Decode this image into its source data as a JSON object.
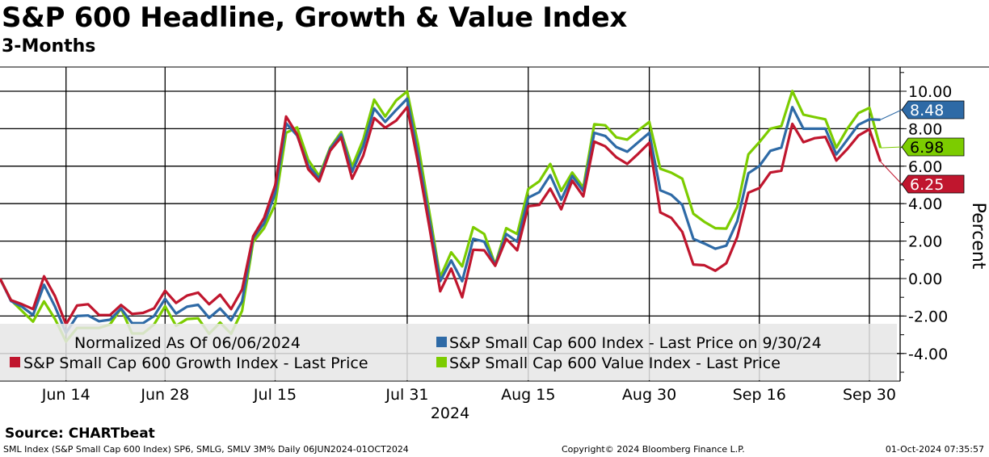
{
  "title": "S&P 600 Headline, Growth & Value Index",
  "subtitle": "3-Months",
  "source": "Source: CHARTbeat",
  "footer": {
    "left": "SML Index (S&P Small Cap 600 Index) SP6, SMLG, SMLV 3M%  Daily 06JUN2024-01OCT2024",
    "center": "Copyright© 2024 Bloomberg Finance L.P.",
    "right": "01-Oct-2024 07:35:57"
  },
  "chart_data": {
    "type": "line",
    "title": "S&P 600 Headline, Growth & Value Index",
    "ylabel": "Percent",
    "xlabel": "2024",
    "ylim": [
      -5.47,
      11.3
    ],
    "yticks": [
      "10.00",
      "8.00",
      "6.00",
      "4.00",
      "2.00",
      "0.00",
      "-2.00",
      "-4.00"
    ],
    "ytick_values": [
      10,
      8,
      6,
      4,
      2,
      0,
      -2,
      -4
    ],
    "xticks": [
      {
        "label": "Jun 14",
        "index": 6
      },
      {
        "label": "Jun 28",
        "index": 15
      },
      {
        "label": "Jul 15",
        "index": 25
      },
      {
        "label": "Jul 31",
        "index": 37
      },
      {
        "label": "Aug 15",
        "index": 48
      },
      {
        "label": "Aug 30",
        "index": 59
      },
      {
        "label": "Sep 16",
        "index": 69
      },
      {
        "label": "Sep 30",
        "index": 79
      }
    ],
    "grid": true,
    "legend": {
      "note": "Normalized As Of 06/06/2024",
      "placement": "bottom-left"
    },
    "series": [
      {
        "name": "S&P Small Cap 600 Index - Last Price on 9/30/24",
        "color": "#2e6aa6",
        "last": "8.48",
        "values": [
          0,
          -1.2,
          -1.5,
          -1.95,
          -0.33,
          -1.5,
          -2.9,
          -2.0,
          -1.97,
          -2.28,
          -2.2,
          -1.6,
          -2.38,
          -2.38,
          -2.0,
          -1.08,
          -1.87,
          -1.5,
          -1.4,
          -2.1,
          -1.6,
          -2.23,
          -1.22,
          2.16,
          2.95,
          4.54,
          8.29,
          7.64,
          6.05,
          5.33,
          6.92,
          7.7,
          5.7,
          7.06,
          9.08,
          8.36,
          9.0,
          9.6,
          6.56,
          3.2,
          -0.14,
          0.97,
          -0.14,
          2.12,
          1.97,
          0.72,
          2.38,
          1.97,
          4.32,
          4.61,
          5.52,
          4.21,
          5.48,
          4.68,
          7.78,
          7.61,
          7.02,
          6.77,
          7.28,
          7.78,
          4.71,
          4.47,
          3.93,
          2.12,
          1.87,
          1.59,
          1.76,
          3.07,
          5.62,
          6.01,
          6.82,
          6.99,
          9.15,
          8.0,
          8.0,
          8.0,
          6.63,
          7.42,
          8.21,
          8.5,
          8.48
        ]
      },
      {
        "name": "S&P Small Cap 600 Growth Index - Last Price",
        "color": "#c0162e",
        "last": "6.25",
        "values": [
          0,
          -1.15,
          -1.37,
          -1.63,
          0.12,
          -0.94,
          -2.45,
          -1.44,
          -1.37,
          -1.95,
          -1.95,
          -1.41,
          -1.89,
          -1.83,
          -1.59,
          -0.65,
          -1.3,
          -0.91,
          -0.75,
          -1.37,
          -0.86,
          -1.63,
          -0.58,
          2.26,
          3.24,
          4.97,
          8.65,
          7.7,
          5.84,
          5.19,
          6.82,
          7.54,
          5.33,
          6.56,
          8.57,
          8.05,
          8.43,
          9.15,
          6.12,
          2.8,
          -0.68,
          0.53,
          -1.0,
          1.54,
          1.51,
          0.68,
          2.12,
          1.51,
          3.86,
          3.93,
          4.8,
          3.7,
          5.23,
          4.39,
          7.31,
          7.06,
          6.48,
          6.12,
          6.67,
          7.25,
          3.53,
          3.24,
          2.49,
          0.75,
          0.71,
          0.42,
          0.82,
          2.23,
          4.58,
          4.83,
          5.66,
          5.76,
          8.26,
          7.28,
          7.49,
          7.56,
          6.3,
          6.92,
          7.64,
          7.97,
          6.25
        ]
      },
      {
        "name": "S&P Small Cap 600 Value Index - Last Price",
        "color": "#7ccc00",
        "last": "6.98",
        "values": [
          0,
          -1.15,
          -1.73,
          -2.3,
          -1.22,
          -2.16,
          -3.36,
          -2.64,
          -2.64,
          -2.64,
          -2.45,
          -1.59,
          -2.93,
          -2.93,
          -2.45,
          -1.48,
          -2.52,
          -2.16,
          -2.12,
          -2.95,
          -2.35,
          -2.95,
          -1.73,
          1.95,
          2.69,
          3.96,
          7.78,
          8.07,
          6.34,
          5.48,
          6.99,
          7.82,
          5.98,
          7.42,
          9.55,
          8.65,
          9.51,
          9.99,
          7.13,
          3.6,
          0.07,
          1.4,
          0.65,
          2.74,
          2.38,
          0.75,
          2.69,
          2.38,
          4.78,
          5.19,
          6.12,
          4.68,
          5.66,
          4.86,
          8.24,
          8.18,
          7.54,
          7.42,
          7.91,
          8.36,
          5.86,
          5.65,
          5.33,
          3.46,
          3.03,
          2.69,
          2.67,
          3.82,
          6.63,
          7.28,
          8.0,
          8.14,
          10.01,
          8.75,
          8.62,
          8.5,
          6.99,
          8.0,
          8.83,
          9.11,
          6.98
        ]
      }
    ]
  }
}
